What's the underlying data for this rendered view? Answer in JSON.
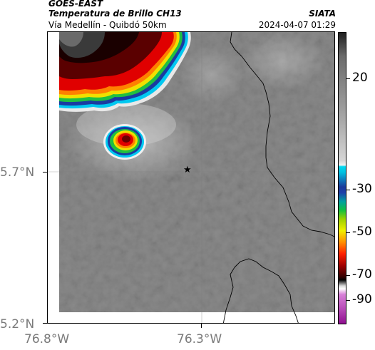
{
  "header": {
    "title_line1": "GOES-EAST",
    "title_line2": "Temperatura de Brillo CH13",
    "subtitle": "Vía Medellín - Quibdó 50km",
    "org": "SIATA",
    "timestamp": "2024-04-07 01:29"
  },
  "axes": {
    "lat_ticks": [
      "5.7°N",
      "5.2°N"
    ],
    "lon_ticks": [
      "76.8°W",
      "76.3°W"
    ]
  },
  "colorbar": {
    "labels": [
      "20",
      "-30",
      "-50",
      "-70",
      "-90"
    ]
  },
  "colors": {
    "background_gray": "#8a8a8a",
    "cold_cloud_red": "#d00000",
    "marker": "#000000"
  },
  "map": {
    "marker_icon": "star-icon"
  }
}
